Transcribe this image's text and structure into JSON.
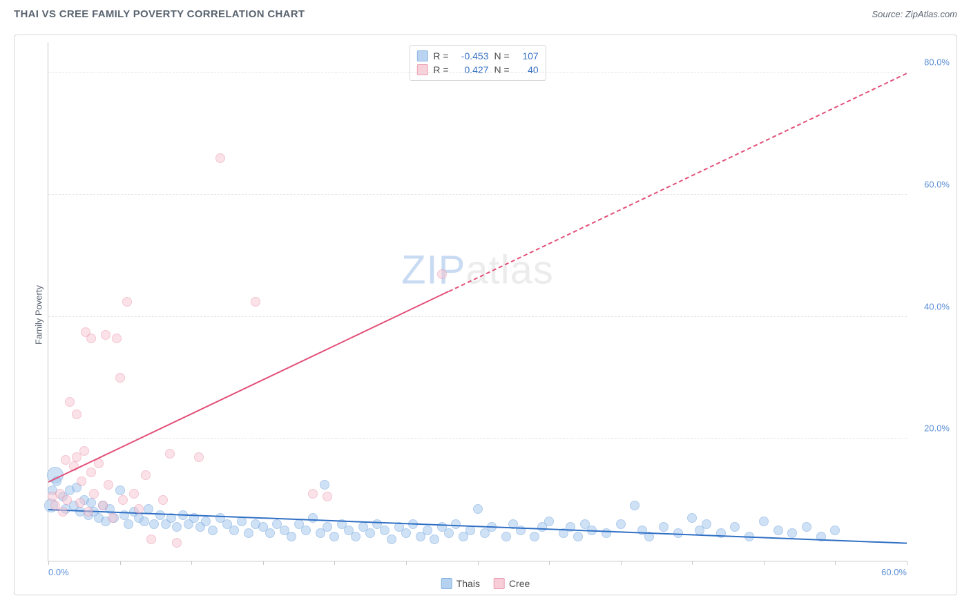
{
  "title": "THAI VS CREE FAMILY POVERTY CORRELATION CHART",
  "source": "Source: ZipAtlas.com",
  "ylabel": "Family Poverty",
  "watermark": {
    "left": "ZIP",
    "right": "atlas"
  },
  "chart": {
    "type": "scatter",
    "background_color": "#ffffff",
    "border_color": "#d6d6d6",
    "grid_color": "#e4e4e4",
    "axis_color": "#c8c8c8",
    "tick_label_color": "#5b8fd6",
    "xlim": [
      0,
      60
    ],
    "ylim": [
      0,
      85
    ],
    "xticks": [
      0,
      5,
      10,
      15,
      20,
      25,
      30,
      35,
      40,
      45,
      50,
      55,
      60
    ],
    "xtick_labels": {
      "0": "0.0%",
      "60": "60.0%"
    },
    "yticks": [
      20,
      40,
      60,
      80
    ],
    "ytick_labels": {
      "20": "20.0%",
      "40": "40.0%",
      "60": "60.0%",
      "80": "80.0%"
    },
    "marker_base_radius": 7,
    "marker_stroke_width": 1.2,
    "trendline_width": 2
  },
  "series": [
    {
      "name": "Thais",
      "fill": "#a9c9ee",
      "stroke": "#6fa3de",
      "fill_opacity": 0.55,
      "trend": {
        "x1": 0,
        "y1": 8.5,
        "x2": 60,
        "y2": 3.0,
        "color": "#2f6fc4",
        "dashed_from": null
      },
      "R": "-0.453",
      "N": "107",
      "points": [
        {
          "x": 0.5,
          "y": 14.0,
          "r": 12
        },
        {
          "x": 0.2,
          "y": 9.0,
          "r": 10
        },
        {
          "x": 0.3,
          "y": 11.5
        },
        {
          "x": 0.6,
          "y": 13.0
        },
        {
          "x": 1.0,
          "y": 10.5
        },
        {
          "x": 1.2,
          "y": 8.5
        },
        {
          "x": 1.5,
          "y": 11.5
        },
        {
          "x": 1.8,
          "y": 9.0
        },
        {
          "x": 2.0,
          "y": 12.0
        },
        {
          "x": 2.2,
          "y": 8.0
        },
        {
          "x": 2.5,
          "y": 10.0
        },
        {
          "x": 2.8,
          "y": 7.5
        },
        {
          "x": 3.0,
          "y": 9.5
        },
        {
          "x": 3.2,
          "y": 8.0
        },
        {
          "x": 3.5,
          "y": 7.0
        },
        {
          "x": 3.8,
          "y": 9.0
        },
        {
          "x": 4.0,
          "y": 6.5
        },
        {
          "x": 4.3,
          "y": 8.5
        },
        {
          "x": 4.6,
          "y": 7.0
        },
        {
          "x": 5.0,
          "y": 11.5
        },
        {
          "x": 5.3,
          "y": 7.5
        },
        {
          "x": 5.6,
          "y": 6.0
        },
        {
          "x": 6.0,
          "y": 8.0
        },
        {
          "x": 6.3,
          "y": 7.0
        },
        {
          "x": 6.7,
          "y": 6.5
        },
        {
          "x": 7.0,
          "y": 8.5
        },
        {
          "x": 7.4,
          "y": 6.0
        },
        {
          "x": 7.8,
          "y": 7.5
        },
        {
          "x": 8.2,
          "y": 6.0
        },
        {
          "x": 8.6,
          "y": 7.0
        },
        {
          "x": 9.0,
          "y": 5.5
        },
        {
          "x": 9.4,
          "y": 7.5
        },
        {
          "x": 9.8,
          "y": 6.0
        },
        {
          "x": 10.2,
          "y": 7.0
        },
        {
          "x": 10.6,
          "y": 5.5
        },
        {
          "x": 11.0,
          "y": 6.5
        },
        {
          "x": 11.5,
          "y": 5.0
        },
        {
          "x": 12.0,
          "y": 7.0
        },
        {
          "x": 12.5,
          "y": 6.0
        },
        {
          "x": 13.0,
          "y": 5.0
        },
        {
          "x": 13.5,
          "y": 6.5
        },
        {
          "x": 14.0,
          "y": 4.5
        },
        {
          "x": 14.5,
          "y": 6.0
        },
        {
          "x": 15.0,
          "y": 5.5
        },
        {
          "x": 15.5,
          "y": 4.5
        },
        {
          "x": 16.0,
          "y": 6.0
        },
        {
          "x": 16.5,
          "y": 5.0
        },
        {
          "x": 17.0,
          "y": 4.0
        },
        {
          "x": 17.5,
          "y": 6.0
        },
        {
          "x": 18.0,
          "y": 5.0
        },
        {
          "x": 18.5,
          "y": 7.0
        },
        {
          "x": 19.0,
          "y": 4.5
        },
        {
          "x": 19.3,
          "y": 12.5
        },
        {
          "x": 19.5,
          "y": 5.5
        },
        {
          "x": 20.0,
          "y": 4.0
        },
        {
          "x": 20.5,
          "y": 6.0
        },
        {
          "x": 21.0,
          "y": 5.0
        },
        {
          "x": 21.5,
          "y": 4.0
        },
        {
          "x": 22.0,
          "y": 5.5
        },
        {
          "x": 22.5,
          "y": 4.5
        },
        {
          "x": 23.0,
          "y": 6.0
        },
        {
          "x": 23.5,
          "y": 5.0
        },
        {
          "x": 24.0,
          "y": 3.5
        },
        {
          "x": 24.5,
          "y": 5.5
        },
        {
          "x": 25.0,
          "y": 4.5
        },
        {
          "x": 25.5,
          "y": 6.0
        },
        {
          "x": 26.0,
          "y": 4.0
        },
        {
          "x": 26.5,
          "y": 5.0
        },
        {
          "x": 27.0,
          "y": 3.5
        },
        {
          "x": 27.5,
          "y": 5.5
        },
        {
          "x": 28.0,
          "y": 4.5
        },
        {
          "x": 28.5,
          "y": 6.0
        },
        {
          "x": 29.0,
          "y": 4.0
        },
        {
          "x": 29.5,
          "y": 5.0
        },
        {
          "x": 30.0,
          "y": 8.5
        },
        {
          "x": 30.5,
          "y": 4.5
        },
        {
          "x": 31.0,
          "y": 5.5
        },
        {
          "x": 32.0,
          "y": 4.0
        },
        {
          "x": 32.5,
          "y": 6.0
        },
        {
          "x": 33.0,
          "y": 5.0
        },
        {
          "x": 34.0,
          "y": 4.0
        },
        {
          "x": 34.5,
          "y": 5.5
        },
        {
          "x": 35.0,
          "y": 6.5
        },
        {
          "x": 36.0,
          "y": 4.5
        },
        {
          "x": 36.5,
          "y": 5.5
        },
        {
          "x": 37.0,
          "y": 4.0
        },
        {
          "x": 37.5,
          "y": 6.0
        },
        {
          "x": 38.0,
          "y": 5.0
        },
        {
          "x": 39.0,
          "y": 4.5
        },
        {
          "x": 40.0,
          "y": 6.0
        },
        {
          "x": 41.0,
          "y": 9.0
        },
        {
          "x": 41.5,
          "y": 5.0
        },
        {
          "x": 42.0,
          "y": 4.0
        },
        {
          "x": 43.0,
          "y": 5.5
        },
        {
          "x": 44.0,
          "y": 4.5
        },
        {
          "x": 45.0,
          "y": 7.0
        },
        {
          "x": 45.5,
          "y": 5.0
        },
        {
          "x": 46.0,
          "y": 6.0
        },
        {
          "x": 47.0,
          "y": 4.5
        },
        {
          "x": 48.0,
          "y": 5.5
        },
        {
          "x": 49.0,
          "y": 4.0
        },
        {
          "x": 50.0,
          "y": 6.5
        },
        {
          "x": 51.0,
          "y": 5.0
        },
        {
          "x": 52.0,
          "y": 4.5
        },
        {
          "x": 53.0,
          "y": 5.5
        },
        {
          "x": 54.0,
          "y": 4.0
        },
        {
          "x": 55.0,
          "y": 5.0
        }
      ]
    },
    {
      "name": "Cree",
      "fill": "#f6c6d2",
      "stroke": "#e98ba5",
      "fill_opacity": 0.5,
      "trend": {
        "x1": 0,
        "y1": 13.0,
        "x2": 60,
        "y2": 80.0,
        "color": "#e34f78",
        "dashed_from": 28
      },
      "R": "0.427",
      "N": "40",
      "points": [
        {
          "x": 0.3,
          "y": 10.5
        },
        {
          "x": 0.5,
          "y": 9.0
        },
        {
          "x": 0.8,
          "y": 11.0
        },
        {
          "x": 1.0,
          "y": 8.0
        },
        {
          "x": 1.2,
          "y": 16.5
        },
        {
          "x": 1.3,
          "y": 10.0
        },
        {
          "x": 1.5,
          "y": 26.0
        },
        {
          "x": 1.8,
          "y": 15.5
        },
        {
          "x": 2.0,
          "y": 17.0
        },
        {
          "x": 2.0,
          "y": 24.0
        },
        {
          "x": 2.2,
          "y": 9.5
        },
        {
          "x": 2.3,
          "y": 13.0
        },
        {
          "x": 2.5,
          "y": 18.0
        },
        {
          "x": 2.6,
          "y": 37.5
        },
        {
          "x": 2.8,
          "y": 8.0
        },
        {
          "x": 3.0,
          "y": 14.5
        },
        {
          "x": 3.0,
          "y": 36.5
        },
        {
          "x": 3.2,
          "y": 11.0
        },
        {
          "x": 3.5,
          "y": 16.0
        },
        {
          "x": 3.8,
          "y": 9.0
        },
        {
          "x": 4.0,
          "y": 37.0
        },
        {
          "x": 4.2,
          "y": 12.5
        },
        {
          "x": 4.5,
          "y": 7.0
        },
        {
          "x": 4.8,
          "y": 36.5
        },
        {
          "x": 5.0,
          "y": 30.0
        },
        {
          "x": 5.2,
          "y": 10.0
        },
        {
          "x": 5.5,
          "y": 42.5
        },
        {
          "x": 6.0,
          "y": 11.0
        },
        {
          "x": 6.3,
          "y": 8.5
        },
        {
          "x": 6.8,
          "y": 14.0
        },
        {
          "x": 7.2,
          "y": 3.5
        },
        {
          "x": 8.0,
          "y": 10.0
        },
        {
          "x": 8.5,
          "y": 17.5
        },
        {
          "x": 9.0,
          "y": 3.0
        },
        {
          "x": 10.5,
          "y": 17.0
        },
        {
          "x": 12.0,
          "y": 66.0
        },
        {
          "x": 14.5,
          "y": 42.5
        },
        {
          "x": 18.5,
          "y": 11.0
        },
        {
          "x": 19.5,
          "y": 10.5
        },
        {
          "x": 27.5,
          "y": 47.0
        }
      ]
    }
  ],
  "stats_legend": {
    "r_label": "R =",
    "n_label": "N ="
  },
  "bottom_legend": {
    "items": [
      "Thais",
      "Cree"
    ]
  }
}
